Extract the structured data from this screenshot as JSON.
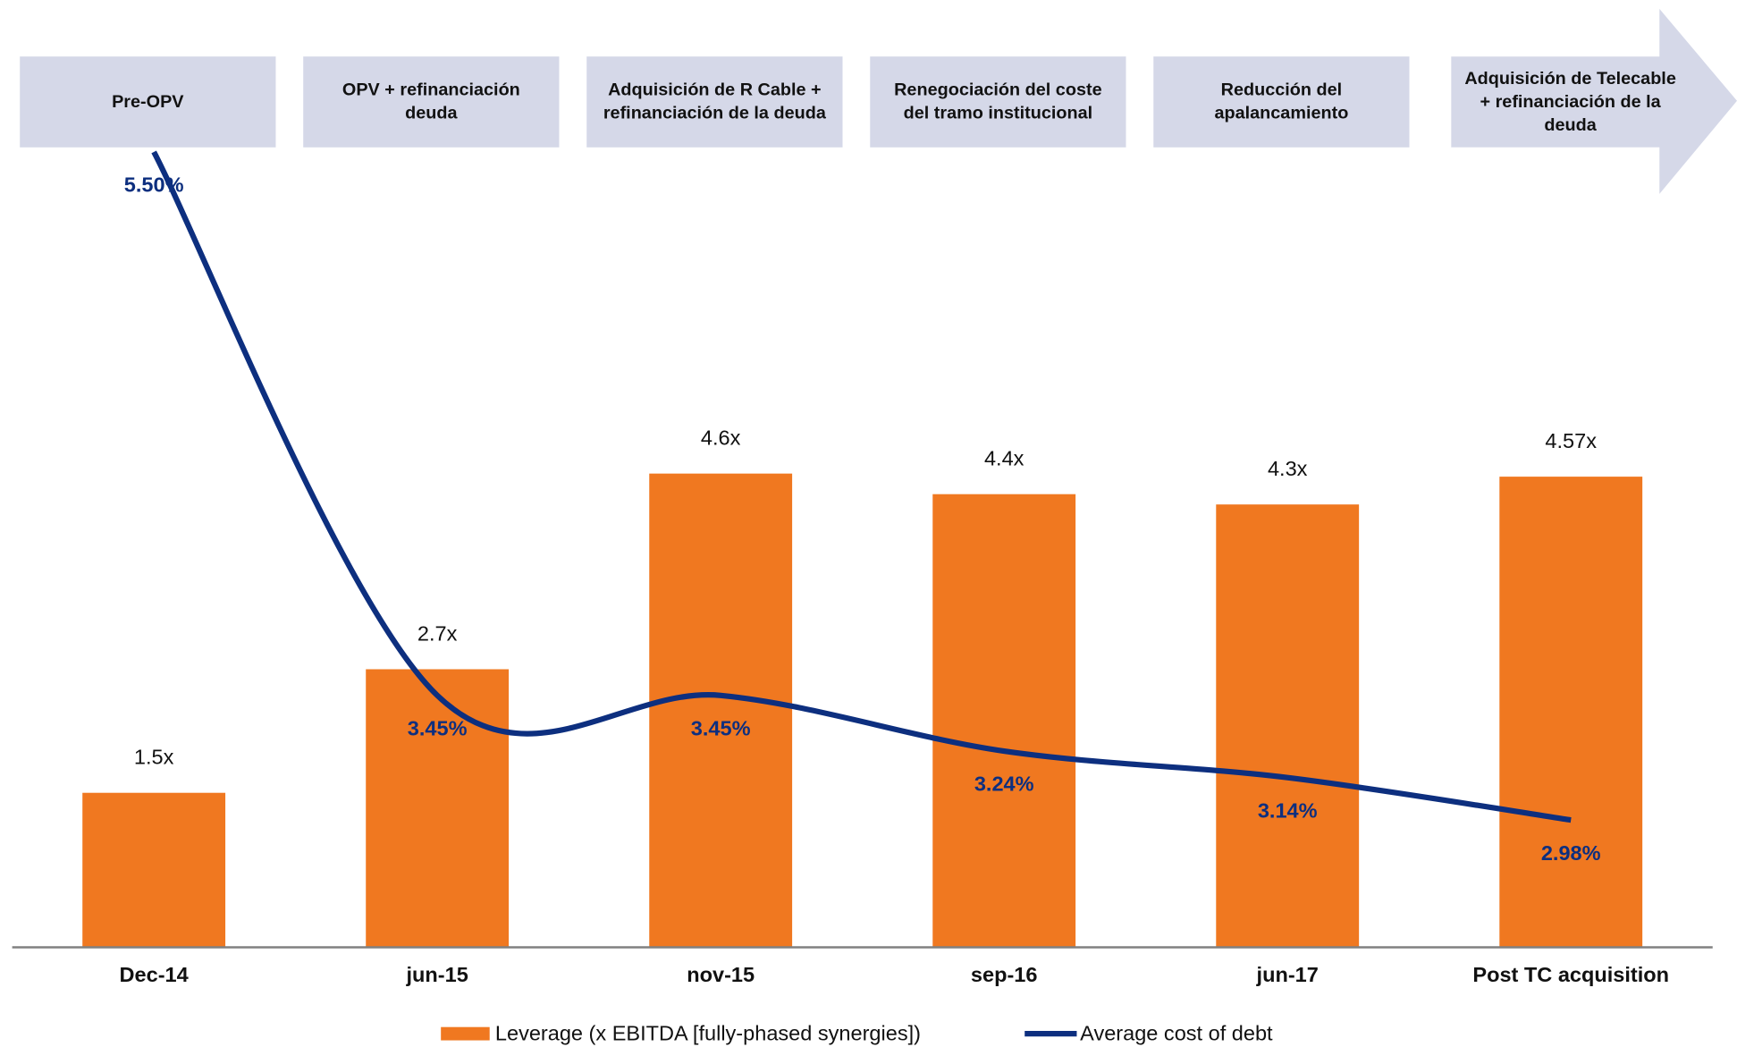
{
  "chart_data": {
    "type": "bar_line",
    "annotations": [
      "Pre-OPV",
      "OPV + refinanciación deuda",
      "Adquisición de R Cable + refinanciación de la deuda",
      "Renegociación del coste del tramo institucional",
      "Reducción del apalancamiento",
      "Adquisición de Telecable + refinanciación de la deuda"
    ],
    "categories": [
      "Dec-14",
      "jun-15",
      "nov-15",
      "sep-16",
      "jun-17",
      "Post TC acquisition"
    ],
    "series": [
      {
        "name": "Leverage (x EBITDA [fully-phased synergies])",
        "color": "#f07820",
        "type": "bar",
        "values": [
          1.5,
          2.7,
          4.6,
          4.4,
          4.3,
          4.57
        ],
        "value_labels": [
          "1.5x",
          "2.7x",
          "4.6x",
          "4.4x",
          "4.3x",
          "4.57x"
        ]
      },
      {
        "name": "Average cost of debt",
        "color": "#0d2f7f",
        "type": "line",
        "axis": "y2",
        "values": [
          5.5,
          3.45,
          3.45,
          3.24,
          3.14,
          2.98
        ],
        "value_labels": [
          "5.50%",
          "3.45%",
          "3.45%",
          "3.24%",
          "3.14%",
          "2.98%"
        ]
      }
    ],
    "ylim": [
      0,
      7.8
    ],
    "y2lim": [
      2.5,
      5.53
    ],
    "legend": "bottom"
  }
}
